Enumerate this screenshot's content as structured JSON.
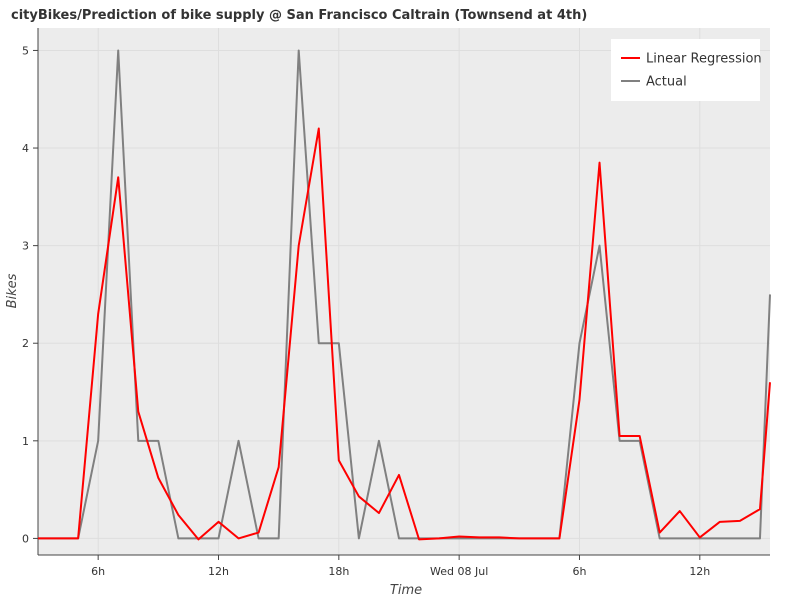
{
  "chart_data": {
    "type": "line",
    "title": "cityBikes/Prediction of bike supply @ San Francisco Caltrain (Townsend at 4th)",
    "xlabel": "Time",
    "ylabel": "Bikes",
    "xlim": [
      3,
      39.5
    ],
    "ylim": [
      -0.17,
      5.23
    ],
    "y_ticks": [
      0,
      1,
      2,
      3,
      4,
      5
    ],
    "x_ticks": [
      {
        "value": 6,
        "label": "6h"
      },
      {
        "value": 12,
        "label": "12h"
      },
      {
        "value": 18,
        "label": "18h"
      },
      {
        "value": 24,
        "label": "Wed 08 Jul"
      },
      {
        "value": 30,
        "label": "6h"
      },
      {
        "value": 36,
        "label": "12h"
      }
    ],
    "grid": true,
    "legend_position": "top-right",
    "x": [
      3,
      4,
      5,
      6,
      7,
      8,
      9,
      10,
      11,
      12,
      13,
      14,
      15,
      16,
      17,
      18,
      19,
      20,
      21,
      22,
      23,
      24,
      25,
      26,
      27,
      28,
      29,
      30,
      31,
      32,
      33,
      34,
      35,
      36,
      37,
      38,
      39,
      39.5
    ],
    "series": [
      {
        "name": "Linear Regression",
        "color": "#ff0000",
        "values": [
          0,
          0,
          0,
          2.3,
          3.7,
          1.3,
          0.62,
          0.24,
          -0.01,
          0.17,
          0,
          0.06,
          0.73,
          3.0,
          4.2,
          0.8,
          0.43,
          0.26,
          0.65,
          -0.01,
          0,
          0.02,
          0.01,
          0.01,
          0,
          0,
          0,
          1.42,
          3.85,
          1.05,
          1.05,
          0.06,
          0.28,
          0.01,
          0.17,
          0.18,
          0.3,
          1.6
        ]
      },
      {
        "name": "Actual",
        "color": "#808080",
        "values": [
          0,
          0,
          0,
          1,
          5,
          1,
          1,
          0,
          0,
          0,
          1,
          0,
          0,
          5,
          2,
          2,
          0,
          1,
          0,
          0,
          0,
          0,
          0,
          0,
          0,
          0,
          0,
          2,
          3,
          1,
          1,
          0,
          0,
          0,
          0,
          0,
          0,
          2.5
        ]
      }
    ]
  }
}
